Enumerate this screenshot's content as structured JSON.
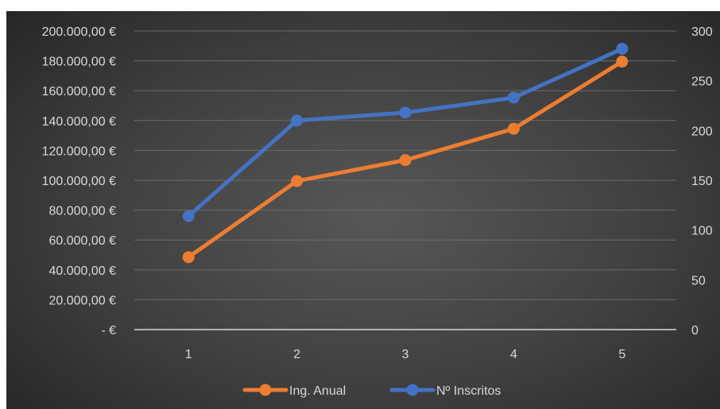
{
  "chart_data": {
    "type": "line",
    "x": [
      "1",
      "2",
      "3",
      "4",
      "5"
    ],
    "left_axis": {
      "ylim": [
        0,
        200000
      ],
      "tick_values": [
        0,
        20000,
        40000,
        60000,
        80000,
        100000,
        120000,
        140000,
        160000,
        180000,
        200000
      ],
      "tick_labels": [
        "-   €",
        "20.000,00 €",
        "40.000,00 €",
        "60.000,00 €",
        "80.000,00 €",
        "100.000,00 €",
        "120.000,00 €",
        "140.000,00 €",
        "160.000,00 €",
        "180.000,00 €",
        "200.000,00 €"
      ]
    },
    "right_axis": {
      "ylim": [
        0,
        300
      ],
      "tick_values": [
        0,
        50,
        100,
        150,
        200,
        250,
        300
      ],
      "tick_labels": [
        "0",
        "50",
        "100",
        "150",
        "200",
        "250",
        "300"
      ]
    },
    "series": [
      {
        "name": "Ing. Anual",
        "axis": "left",
        "color": "#ed7d31",
        "values": [
          48500,
          99500,
          113500,
          134500,
          179500
        ]
      },
      {
        "name": "Nº Inscritos",
        "axis": "right",
        "color": "#4472c4",
        "values": [
          114,
          210,
          218,
          233,
          282
        ]
      }
    ],
    "grid": true,
    "legend_position": "bottom"
  }
}
